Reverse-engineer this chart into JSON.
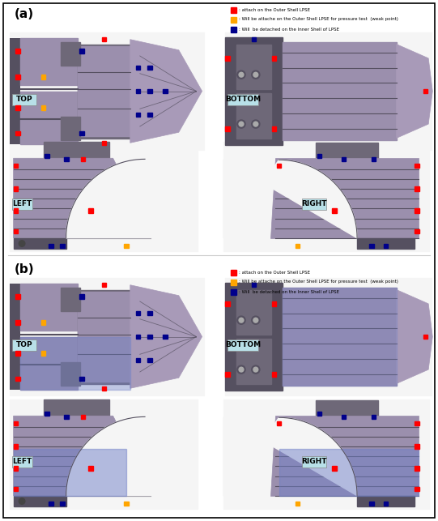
{
  "background_color": "#ffffff",
  "border_color": "#000000",
  "figure_width": 5.41,
  "figure_height": 6.43,
  "dpi": 100,
  "label_a": "(a)",
  "label_b": "(b)",
  "legend_items_a": [
    {
      "color": "#ff0000",
      "text": ": attach on the Outer Shell LPSE"
    },
    {
      "color": "#ffa500",
      "text": ": Will be attache on the Outer Shell LPSE for pressure test  (weak point)"
    },
    {
      "color": "#00008b",
      "text": ": Will  be detached on the Inner Shell of LPSE"
    }
  ],
  "legend_items_b": [
    {
      "color": "#ff0000",
      "text": ": attach on the Outer Shell LPSE"
    },
    {
      "color": "#ffa500",
      "text": ": Will be attache on the Outer Shell LPSE for pressure test  (weak point)"
    },
    {
      "color": "#00008b",
      "text": ": Will  be detached on the Inner Shell of LPSE"
    }
  ],
  "body_color": "#9b8fad",
  "body_dark": "#7a6e84",
  "body_light": "#b0a4c0",
  "segment_color": "#8a7e9a",
  "metal_color": "#6e6878",
  "dark_metal": "#555060",
  "nose_color": "#a89ab8",
  "blue_highlight": "#7080c8",
  "white_bg": "#f5f5f5",
  "label_bg": "#b8e0e8",
  "gap_color": "#c0b8cc"
}
